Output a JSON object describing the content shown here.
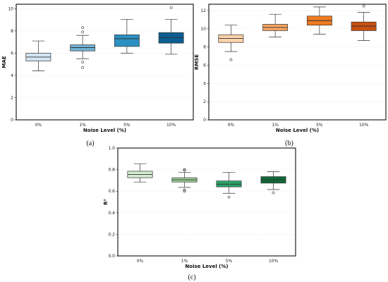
{
  "chart_data": [
    {
      "type": "box",
      "panel_label": "(a)",
      "xlabel": "Noise Level (%)",
      "ylabel": "MAE",
      "categories": [
        "0%",
        "1%",
        "5%",
        "10%"
      ],
      "ylim": [
        0,
        10.4
      ],
      "yticks": [
        0,
        2,
        4,
        6,
        8,
        10
      ],
      "grid": true,
      "colors": [
        "#d3e4f2",
        "#6fb2d6",
        "#2b91c2",
        "#0b5d92"
      ],
      "boxes": [
        {
          "whislo": 4.4,
          "q1": 5.3,
          "med": 5.65,
          "q3": 6.0,
          "whishi": 7.1,
          "fliers": []
        },
        {
          "whislo": 5.5,
          "q1": 6.2,
          "med": 6.5,
          "q3": 6.75,
          "whishi": 7.6,
          "fliers": [
            7.9,
            8.3,
            5.2,
            4.7
          ]
        },
        {
          "whislo": 6.0,
          "q1": 6.6,
          "med": 7.3,
          "q3": 7.65,
          "whishi": 9.05,
          "fliers": []
        },
        {
          "whislo": 5.9,
          "q1": 6.9,
          "med": 7.4,
          "q3": 7.85,
          "whishi": 9.05,
          "fliers": [
            10.1
          ]
        }
      ]
    },
    {
      "type": "box",
      "panel_label": "(b)",
      "xlabel": "Noise Level (%)",
      "ylabel": "RMSE",
      "categories": [
        "0%",
        "1%",
        "5%",
        "10%"
      ],
      "ylim": [
        0,
        12.7
      ],
      "yticks": [
        0,
        2,
        4,
        6,
        8,
        10,
        12
      ],
      "grid": true,
      "colors": [
        "#fbd3a9",
        "#f6a460",
        "#ef7b22",
        "#c94f10"
      ],
      "boxes": [
        {
          "whislo": 7.5,
          "q1": 8.5,
          "med": 8.95,
          "q3": 9.35,
          "whishi": 10.4,
          "fliers": [
            6.6
          ]
        },
        {
          "whislo": 9.1,
          "q1": 9.8,
          "med": 10.15,
          "q3": 10.5,
          "whishi": 11.6,
          "fliers": []
        },
        {
          "whislo": 9.4,
          "q1": 10.4,
          "med": 10.9,
          "q3": 11.4,
          "whishi": 12.4,
          "fliers": []
        },
        {
          "whislo": 8.7,
          "q1": 9.8,
          "med": 10.3,
          "q3": 10.75,
          "whishi": 11.8,
          "fliers": [
            12.5
          ]
        }
      ]
    },
    {
      "type": "box",
      "panel_label": "(c)",
      "xlabel": "Noise Level (%)",
      "ylabel": "R²",
      "categories": [
        "0%",
        "1%",
        "5%",
        "10%"
      ],
      "ylim": [
        0,
        1.0
      ],
      "yticks": [
        0.0,
        0.2,
        0.4,
        0.6,
        0.8,
        1.0
      ],
      "grid": true,
      "colors": [
        "#d5ecd0",
        "#9fd69a",
        "#2aa66a",
        "#0f6b38"
      ],
      "boxes": [
        {
          "whislo": 0.685,
          "q1": 0.725,
          "med": 0.755,
          "q3": 0.785,
          "whishi": 0.855,
          "fliers": []
        },
        {
          "whislo": 0.635,
          "q1": 0.685,
          "med": 0.705,
          "q3": 0.725,
          "whishi": 0.775,
          "fliers": [
            0.8,
            0.795,
            0.61,
            0.6
          ]
        },
        {
          "whislo": 0.58,
          "q1": 0.64,
          "med": 0.665,
          "q3": 0.695,
          "whishi": 0.775,
          "fliers": [
            0.545
          ]
        },
        {
          "whislo": 0.615,
          "q1": 0.675,
          "med": 0.705,
          "q3": 0.735,
          "whishi": 0.78,
          "fliers": [
            0.585
          ]
        }
      ]
    }
  ]
}
